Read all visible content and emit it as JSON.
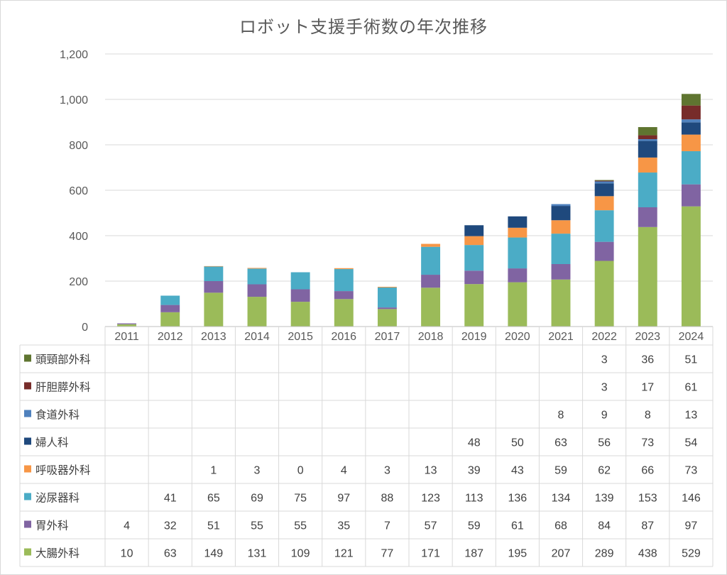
{
  "chart_data": {
    "type": "bar",
    "stacked": true,
    "title": "ロボット支援手術数の年次推移",
    "categories": [
      "2011",
      "2012",
      "2013",
      "2014",
      "2015",
      "2016",
      "2017",
      "2018",
      "2019",
      "2020",
      "2021",
      "2022",
      "2023",
      "2024"
    ],
    "ylim": [
      0,
      1200
    ],
    "yticks": [
      0,
      200,
      400,
      600,
      800,
      1000,
      1200
    ],
    "ytick_labels": [
      "0",
      "200",
      "400",
      "600",
      "800",
      "1,000",
      "1,200"
    ],
    "grid": true,
    "legend_placement": "data-table-left",
    "series": [
      {
        "name": "大腸外科",
        "color": "#9bbb59",
        "values": [
          10,
          63,
          149,
          131,
          109,
          121,
          77,
          171,
          187,
          195,
          207,
          289,
          438,
          529
        ]
      },
      {
        "name": "胃外科",
        "color": "#8064a2",
        "values": [
          4,
          32,
          51,
          55,
          55,
          35,
          7,
          57,
          59,
          61,
          68,
          84,
          87,
          97
        ]
      },
      {
        "name": "泌尿器科",
        "color": "#4bacc6",
        "values": [
          null,
          41,
          65,
          69,
          75,
          97,
          88,
          123,
          113,
          136,
          134,
          139,
          153,
          146
        ]
      },
      {
        "name": "呼吸器外科",
        "color": "#f79646",
        "values": [
          null,
          null,
          1,
          3,
          0,
          4,
          3,
          13,
          39,
          43,
          59,
          62,
          66,
          73
        ]
      },
      {
        "name": "婦人科",
        "color": "#1f497d",
        "values": [
          null,
          null,
          null,
          null,
          null,
          null,
          null,
          null,
          48,
          50,
          63,
          56,
          73,
          54
        ]
      },
      {
        "name": "食道外科",
        "color": "#4f81bd",
        "values": [
          null,
          null,
          null,
          null,
          null,
          null,
          null,
          null,
          null,
          null,
          8,
          9,
          8,
          13
        ]
      },
      {
        "name": "肝胆膵外科",
        "color": "#772c2a",
        "values": [
          null,
          null,
          null,
          null,
          null,
          null,
          null,
          null,
          null,
          null,
          null,
          3,
          17,
          61
        ]
      },
      {
        "name": "頭頸部外科",
        "color": "#5f7530",
        "values": [
          null,
          null,
          null,
          null,
          null,
          null,
          null,
          null,
          null,
          null,
          null,
          3,
          36,
          51
        ]
      }
    ]
  }
}
